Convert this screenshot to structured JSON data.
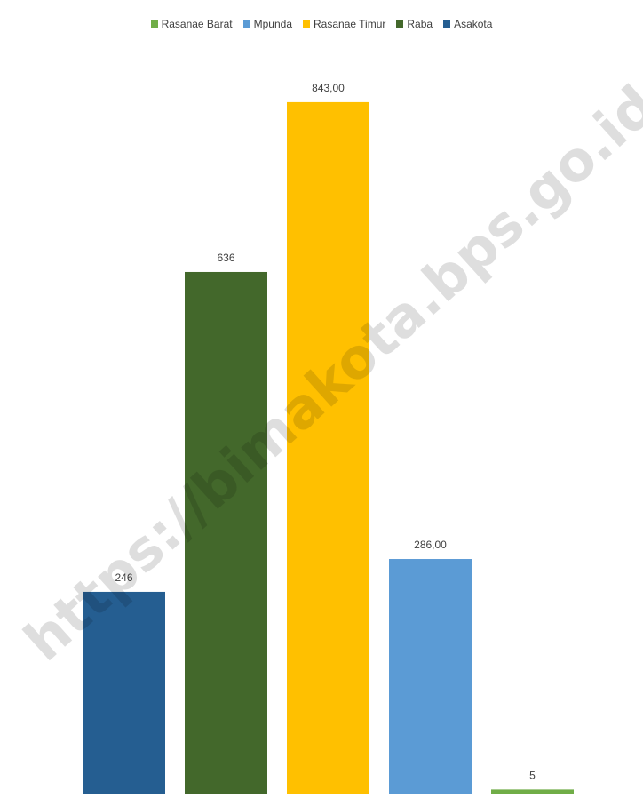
{
  "chart_data": {
    "type": "bar",
    "categories": [
      "Asakota",
      "Raba",
      "Rasanae Timur",
      "Mpunda",
      "Rasanae Barat"
    ],
    "values": [
      246,
      636,
      843,
      286,
      5
    ],
    "data_labels": [
      "246",
      "636",
      "843,00",
      "286,00",
      "5"
    ],
    "colors": [
      "#255e91",
      "#43682b",
      "#ffc000",
      "#5b9bd5",
      "#70ad47"
    ],
    "legend": {
      "placement": "top",
      "entries": [
        {
          "name": "Rasanae Barat",
          "color": "#70ad47"
        },
        {
          "name": "Mpunda",
          "color": "#5b9bd5"
        },
        {
          "name": "Rasanae Timur",
          "color": "#ffc000"
        },
        {
          "name": "Raba",
          "color": "#43682b"
        },
        {
          "name": "Asakota",
          "color": "#255e91"
        }
      ]
    },
    "ylim": [
      0,
      1000
    ],
    "grid": false,
    "axes_visible": false
  },
  "watermark": {
    "text": "https://bimakota.bps.go.id"
  }
}
